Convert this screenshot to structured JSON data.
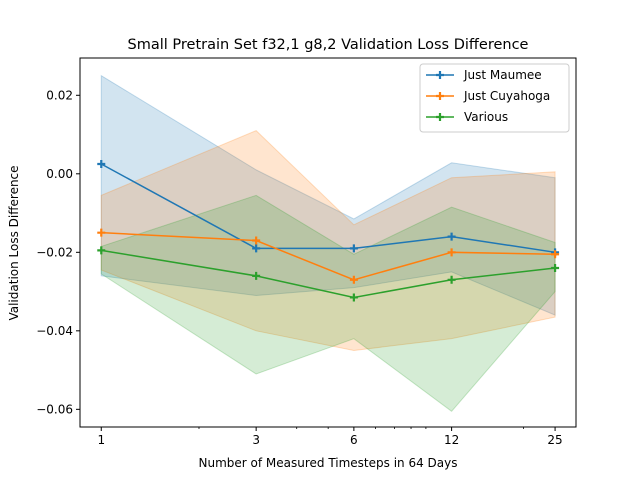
{
  "chart_data": {
    "type": "line",
    "title": "Small Pretrain Set f32,1 g8,2 Validation Loss Difference",
    "xlabel": "Number of Measured Timesteps in 64 Days",
    "ylabel": "Validation Loss Difference",
    "xscale": "log",
    "x": [
      1,
      3,
      6,
      12,
      25
    ],
    "xtick_labels": [
      "1",
      "3",
      "6",
      "12",
      "25"
    ],
    "xlim": [
      0.86,
      29
    ],
    "ylim": [
      -0.0645,
      0.0295
    ],
    "ytick_values": [
      -0.06,
      -0.04,
      -0.02,
      0.0,
      0.02
    ],
    "ytick_labels": [
      "−0.06",
      "−0.04",
      "−0.02",
      "0.00",
      "0.02"
    ],
    "grid": false,
    "legend_position": "top-right",
    "series": [
      {
        "name": "Just Maumee",
        "color": "#1f77b4",
        "values": [
          0.0025,
          -0.019,
          -0.019,
          -0.016,
          -0.02
        ],
        "band_upper": [
          0.025,
          0.001,
          -0.0115,
          0.0028,
          -0.001
        ],
        "band_lower": [
          -0.026,
          -0.031,
          -0.029,
          -0.025,
          -0.036
        ]
      },
      {
        "name": "Just Cuyahoga",
        "color": "#ff7f0e",
        "values": [
          -0.015,
          -0.017,
          -0.027,
          -0.02,
          -0.0205
        ],
        "band_upper": [
          -0.0055,
          0.011,
          -0.013,
          -0.001,
          0.0005
        ],
        "band_lower": [
          -0.0245,
          -0.04,
          -0.045,
          -0.042,
          -0.0365
        ]
      },
      {
        "name": "Various",
        "color": "#2ca02c",
        "values": [
          -0.0195,
          -0.026,
          -0.0315,
          -0.027,
          -0.024
        ],
        "band_upper": [
          -0.0185,
          -0.0055,
          -0.0205,
          -0.0085,
          -0.0175
        ],
        "band_lower": [
          -0.0255,
          -0.051,
          -0.042,
          -0.0605,
          -0.03
        ]
      }
    ]
  }
}
